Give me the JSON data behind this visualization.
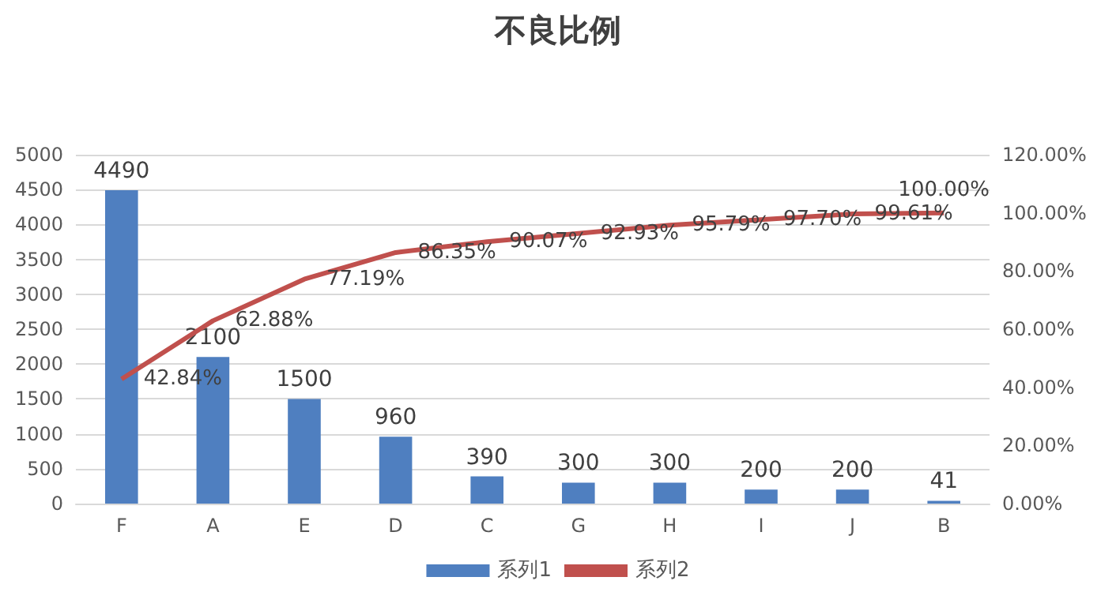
{
  "chart_data": {
    "type": "bar",
    "title": "不良比例",
    "categories": [
      "F",
      "A",
      "E",
      "D",
      "C",
      "G",
      "H",
      "I",
      "J",
      "B"
    ],
    "series": [
      {
        "name": "系列1",
        "color": "#4f7fc0",
        "values": [
          4490,
          2100,
          1500,
          960,
          390,
          300,
          300,
          200,
          200,
          41
        ],
        "data_labels": true
      },
      {
        "name": "系列2",
        "type": "line",
        "axis": "y2",
        "color": "#c0504d",
        "marker": "none",
        "values": [
          42.84,
          62.88,
          77.19,
          86.35,
          90.07,
          92.93,
          95.79,
          97.7,
          99.61,
          100
        ],
        "value_labels": [
          "42.84%",
          "62.88%",
          "77.19%",
          "86.35%",
          "90.07%",
          "92.93%",
          "95.79%",
          "97.70%",
          "99.61%",
          "100.00%"
        ]
      }
    ],
    "ylim": [
      0,
      5000
    ],
    "yticks": [
      0,
      500,
      1000,
      1500,
      2000,
      2500,
      3000,
      3500,
      4000,
      4500,
      5000
    ],
    "y2lim": [
      0,
      120
    ],
    "y2ticks": [
      {
        "value": 0,
        "label": "0.00%"
      },
      {
        "value": 20,
        "label": "20.00%"
      },
      {
        "value": 40,
        "label": "40.00%"
      },
      {
        "value": 60,
        "label": "60.00%"
      },
      {
        "value": 80,
        "label": "80.00%"
      },
      {
        "value": 100,
        "label": "100.00%"
      },
      {
        "value": 120,
        "label": "120.00%"
      }
    ],
    "grid": "y",
    "legend": "bottom"
  }
}
